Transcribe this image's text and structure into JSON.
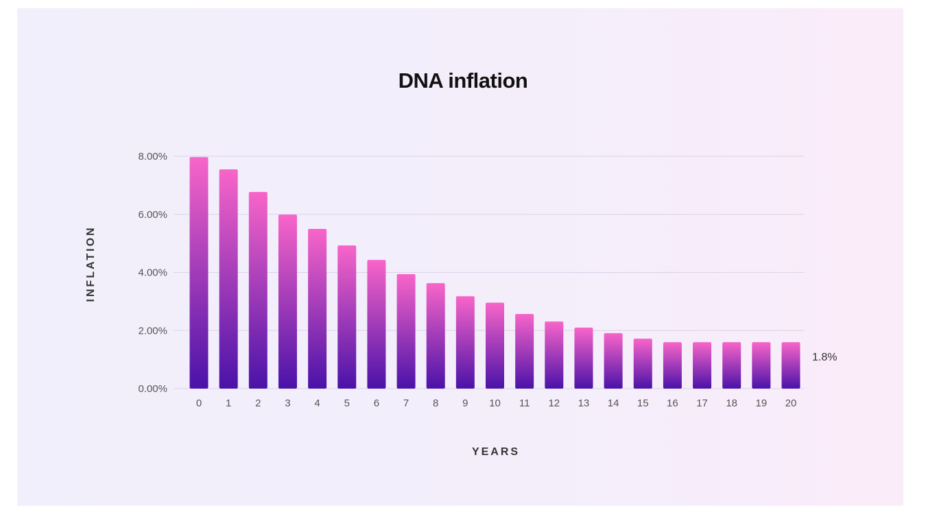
{
  "chart_data": {
    "type": "bar",
    "title": "DNA inflation",
    "xlabel": "YEARS",
    "ylabel": "INFLATION",
    "categories": [
      "0",
      "1",
      "2",
      "3",
      "4",
      "5",
      "6",
      "7",
      "8",
      "9",
      "10",
      "11",
      "12",
      "13",
      "14",
      "15",
      "16",
      "17",
      "18",
      "19",
      "20"
    ],
    "values": [
      7.97,
      7.55,
      6.77,
      5.99,
      5.5,
      4.93,
      4.43,
      3.94,
      3.63,
      3.18,
      2.96,
      2.57,
      2.31,
      2.1,
      1.91,
      1.72,
      1.6,
      1.6,
      1.6,
      1.6,
      1.6
    ],
    "unit": "%",
    "ylim": [
      0,
      8
    ],
    "yticks": [
      "0.00%",
      "2.00%",
      "4.00%",
      "6.00%",
      "8.00%"
    ],
    "ytick_values": [
      0,
      2,
      4,
      6,
      8
    ],
    "grid": true,
    "annotation": "1.8%",
    "colors": {
      "bar_top": "#f865c9",
      "bar_bottom": "#4a12a8",
      "grid": "#d9d2e6"
    }
  }
}
